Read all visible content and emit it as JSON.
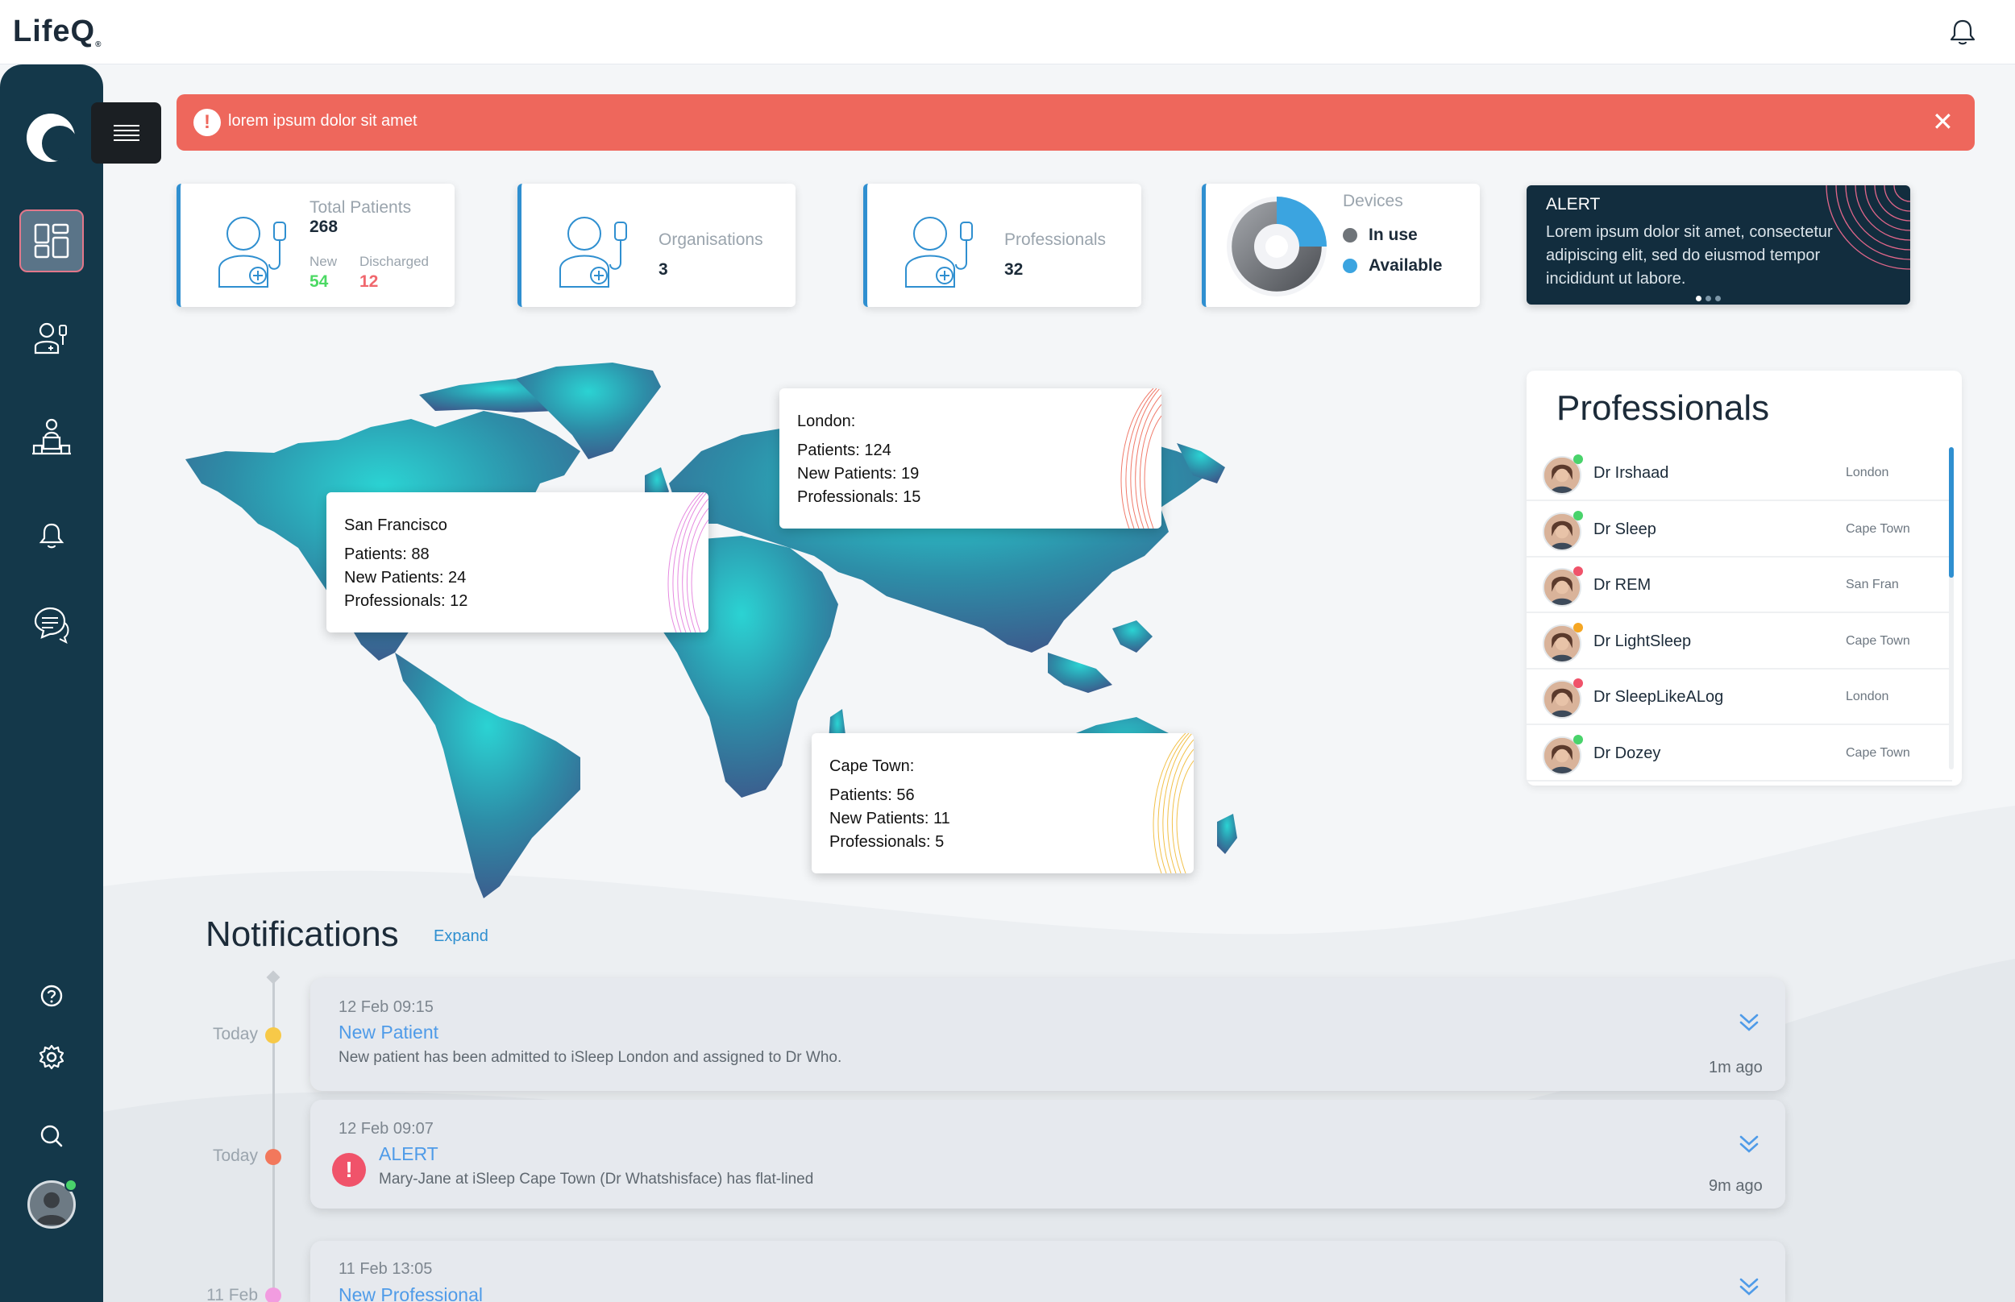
{
  "brand": {
    "name": "LifeQ",
    "reg": "®"
  },
  "banner": {
    "message": "lorem ipsum dolor sit amet",
    "icon": "!",
    "close": "✕",
    "color": "#ee675c"
  },
  "stats": {
    "total_patients": {
      "label": "Total Patients",
      "value": "268",
      "new_label": "New",
      "new_value": "54",
      "discharged_label": "Discharged",
      "discharged_value": "12"
    },
    "organisations": {
      "label": "Organisations",
      "value": "3"
    },
    "professionals": {
      "label": "Professionals",
      "value": "32"
    },
    "devices": {
      "label": "Devices",
      "in_use": "In use",
      "available": "Available",
      "in_use_fraction": 0.75
    }
  },
  "alert_card": {
    "title": "ALERT",
    "body": "Lorem ipsum dolor sit amet, consectetur adipiscing elit, sed do eiusmod tempor incididunt ut labore."
  },
  "locations": {
    "london": {
      "name": "London:",
      "patients": "Patients: 124",
      "new_patients": "New Patients: 19",
      "professionals": "Professionals: 15"
    },
    "sf": {
      "name": "San Francisco",
      "patients": "Patients: 88",
      "new_patients": "New Patients: 24",
      "professionals": "Professionals: 12"
    },
    "cape": {
      "name": "Cape Town:",
      "patients": "Patients: 56",
      "new_patients": "New Patients: 11",
      "professionals": "Professionals: 5"
    }
  },
  "professionals_panel": {
    "title": "Professionals",
    "items": [
      {
        "name": "Dr Irshaad",
        "city": "London",
        "status": "#49d36b"
      },
      {
        "name": "Dr Sleep",
        "city": "Cape Town",
        "status": "#49d36b"
      },
      {
        "name": "Dr REM",
        "city": "San Fran",
        "status": "#f0536a"
      },
      {
        "name": "Dr LightSleep",
        "city": "Cape Town",
        "status": "#f5a623"
      },
      {
        "name": "Dr SleepLikeALog",
        "city": "London",
        "status": "#f0536a"
      },
      {
        "name": "Dr Dozey",
        "city": "Cape Town",
        "status": "#49d36b"
      }
    ]
  },
  "notifications": {
    "title": "Notifications",
    "expand": "Expand",
    "items": [
      {
        "day": "Today",
        "dot": "#f7c948",
        "timestamp": "12 Feb 09:15",
        "title": "New Patient",
        "body": "New patient has been admitted to iSleep London and assigned to Dr Who.",
        "ago": "1m ago"
      },
      {
        "day": "Today",
        "dot": "#f2785c",
        "timestamp": "12 Feb 09:07",
        "title": "ALERT",
        "body": "Mary-Jane at iSleep Cape Town (Dr Whatshisface) has flat-lined",
        "ago": "9m ago"
      },
      {
        "day": "11 Feb",
        "dot": "#f29ce0",
        "timestamp": "11 Feb 13:05",
        "title": "New Professional",
        "body": "",
        "ago": ""
      }
    ]
  },
  "icons": {
    "sidebar": [
      "app-logo-icon",
      "dashboard-icon",
      "patient-icon",
      "organisation-icon",
      "notifications-icon",
      "chat-icon",
      "help-icon",
      "settings-icon",
      "search-icon"
    ],
    "top": "bell-icon"
  },
  "colors": {
    "accent": "#2f8fd0",
    "sidebar": "#14384a",
    "alert": "#ee675c",
    "map_from": "#2ccfd1",
    "map_to": "#3a5f8f"
  }
}
